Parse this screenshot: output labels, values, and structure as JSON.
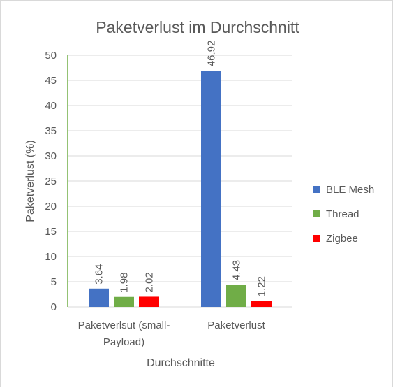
{
  "chart_data": {
    "type": "bar",
    "title": "Paketverlust im Durchschnitt",
    "xlabel": "Durchschnitte",
    "ylabel": "Paketverlust (%)",
    "categories": [
      [
        "Paketverlsut (small-",
        "Payload)"
      ],
      [
        "Paketverlust"
      ]
    ],
    "series": [
      {
        "name": "BLE Mesh",
        "color": "#4472c4",
        "values": [
          3.64,
          46.92
        ]
      },
      {
        "name": "Thread",
        "color": "#70ad47",
        "values": [
          1.98,
          4.43
        ]
      },
      {
        "name": "Zigbee",
        "color": "#ff0000",
        "values": [
          2.02,
          1.22
        ]
      }
    ],
    "ylim": [
      0,
      50
    ],
    "yticks": [
      0,
      5,
      10,
      15,
      20,
      25,
      30,
      35,
      40,
      45,
      50
    ],
    "grid": true,
    "legend_position": "right",
    "axis_color": "#70ad47"
  }
}
